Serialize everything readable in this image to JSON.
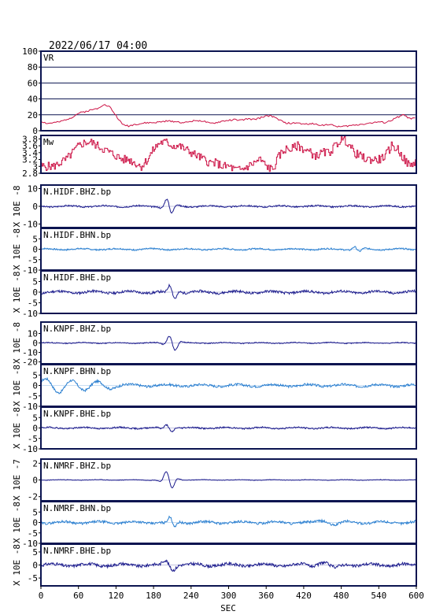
{
  "header": {
    "datetime": "2022/06/17 04:00"
  },
  "xaxis": {
    "label": "SEC",
    "range": [
      0,
      600
    ],
    "ticks": [
      0,
      60,
      120,
      180,
      240,
      300,
      360,
      420,
      480,
      540,
      600
    ]
  },
  "colors": {
    "frame": "#0b1450",
    "vr": "#cc1144",
    "mw": "#cc1144",
    "dark_trace": "#1a1a8c",
    "light_trace": "#2a7fd0"
  },
  "chart_data": [
    {
      "type": "line",
      "title": "VR",
      "ylim": [
        0,
        100
      ],
      "yticks": [
        0,
        20,
        40,
        60,
        80,
        100
      ],
      "grid": true,
      "series": [
        {
          "x": [
            0,
            10,
            20,
            30,
            40,
            50,
            60,
            70,
            80,
            90,
            100,
            110,
            120,
            130,
            140,
            150,
            160,
            170,
            180,
            190,
            200,
            210,
            220,
            230,
            240,
            250,
            260,
            270,
            280,
            290,
            300,
            310,
            320,
            330,
            340,
            350,
            360,
            370,
            380,
            390,
            400,
            410,
            420,
            430,
            440,
            450,
            460,
            470,
            480,
            490,
            500,
            510,
            520,
            530,
            540,
            550,
            560,
            570,
            580,
            590,
            600
          ],
          "values": [
            12,
            9,
            10,
            11,
            14,
            17,
            22,
            24,
            26,
            28,
            33,
            30,
            19,
            8,
            6,
            8,
            9,
            10,
            10,
            11,
            12,
            12,
            11,
            10,
            12,
            13,
            12,
            9,
            10,
            12,
            13,
            14,
            13,
            15,
            14,
            16,
            19,
            18,
            14,
            10,
            9,
            10,
            8,
            9,
            8,
            7,
            8,
            6,
            5,
            6,
            7,
            8,
            9,
            10,
            11,
            10,
            13,
            17,
            20,
            15,
            16
          ]
        }
      ]
    },
    {
      "type": "line",
      "title": "Mw",
      "ylim": [
        2.8,
        3.9
      ],
      "yticks": [
        2.8,
        3.0,
        3.2,
        3.4,
        3.6,
        3.8
      ],
      "grid": false,
      "series": [
        {
          "x": [
            0,
            10,
            20,
            30,
            40,
            50,
            60,
            70,
            80,
            90,
            100,
            110,
            120,
            130,
            140,
            150,
            160,
            170,
            180,
            190,
            200,
            210,
            220,
            230,
            240,
            250,
            260,
            270,
            280,
            290,
            300,
            310,
            320,
            330,
            340,
            350,
            360,
            370,
            380,
            390,
            400,
            410,
            420,
            430,
            440,
            450,
            460,
            470,
            480,
            490,
            500,
            510,
            520,
            530,
            540,
            550,
            560,
            570,
            580,
            590,
            600
          ],
          "values": [
            3.0,
            3.0,
            3.0,
            3.1,
            3.2,
            3.4,
            3.6,
            3.7,
            3.7,
            3.6,
            3.5,
            3.4,
            3.3,
            3.2,
            3.2,
            3.1,
            3.0,
            3.2,
            3.5,
            3.7,
            3.7,
            3.6,
            3.6,
            3.5,
            3.4,
            3.3,
            3.2,
            3.1,
            3.1,
            3.0,
            3.0,
            2.9,
            2.9,
            3.0,
            3.1,
            3.2,
            3.0,
            2.9,
            3.3,
            3.5,
            3.5,
            3.6,
            3.5,
            3.4,
            3.3,
            3.4,
            3.4,
            3.6,
            3.8,
            3.7,
            3.4,
            3.3,
            3.2,
            3.2,
            3.2,
            3.3,
            3.6,
            3.5,
            3.2,
            3.0,
            3.2
          ]
        }
      ]
    },
    {
      "type": "line",
      "title": "N.HIDF.BHZ.bp",
      "ylabel": "X 10E -8",
      "ylim": [
        -12,
        12
      ],
      "yticks": [
        10,
        0,
        -10
      ],
      "color_key": "dark_trace",
      "events": [
        {
          "t": 205,
          "amp": 5,
          "w": 7
        }
      ],
      "noise": 0.6,
      "seed": 3
    },
    {
      "type": "line",
      "title": "N.HIDF.BHN.bp",
      "ylabel": "X 10E -8",
      "ylim": [
        -10,
        10
      ],
      "yticks": [
        5,
        0,
        -5,
        -10
      ],
      "color_key": "light_trace",
      "events": [
        {
          "t": 505,
          "amp": 1.5,
          "w": 7
        }
      ],
      "noise": 0.5,
      "seed": 7
    },
    {
      "type": "line",
      "title": "N.HIDF.BHE.bp",
      "ylabel": "X 10E -8",
      "ylim": [
        -10,
        10
      ],
      "yticks": [
        5,
        0,
        -5,
        -10
      ],
      "color_key": "dark_trace",
      "events": [
        {
          "t": 210,
          "amp": 3.5,
          "w": 7
        }
      ],
      "noise": 0.8,
      "seed": 11
    },
    {
      "type": "line",
      "title": "N.KNPF.BHZ.bp",
      "ylabel": "X 10E -8",
      "ylim": [
        -22,
        22
      ],
      "yticks": [
        10,
        0,
        -10,
        -20
      ],
      "color_key": "dark_trace",
      "events": [
        {
          "t": 210,
          "amp": 9,
          "w": 8
        }
      ],
      "noise": 0.7,
      "seed": 13
    },
    {
      "type": "line",
      "title": "N.KNPF.BHN.bp",
      "ylabel": "X 10E -8",
      "ylim": [
        -10,
        10
      ],
      "yticks": [
        5,
        0,
        -5,
        -10
      ],
      "color_key": "light_trace",
      "events": [
        {
          "t": 18,
          "amp": 4.5,
          "w": 18
        },
        {
          "t": 60,
          "amp": 2.5,
          "w": 18
        },
        {
          "t": 100,
          "amp": 1.5,
          "w": 18
        }
      ],
      "noise": 0.8,
      "seed": 17
    },
    {
      "type": "line",
      "title": "N.KNPF.BHE.bp",
      "ylabel": "X 10E -8",
      "ylim": [
        -10,
        10
      ],
      "yticks": [
        5,
        0,
        -5,
        -10
      ],
      "color_key": "dark_trace",
      "events": [
        {
          "t": 205,
          "amp": 2,
          "w": 7
        }
      ],
      "noise": 0.5,
      "seed": 19
    },
    {
      "type": "line",
      "title": "N.NMRF.BHZ.bp",
      "ylabel": "X 10E -7",
      "ylim": [
        -2.5,
        2.5
      ],
      "yticks": [
        2,
        0,
        -2
      ],
      "color_key": "dark_trace",
      "events": [
        {
          "t": 205,
          "amp": 1.2,
          "w": 8
        }
      ],
      "noise": 0.05,
      "seed": 23
    },
    {
      "type": "line",
      "title": "N.NMRF.BHN.bp",
      "ylabel": "X 10E -8",
      "ylim": [
        -10,
        10
      ],
      "yticks": [
        5,
        0,
        -5,
        -10
      ],
      "color_key": "light_trace",
      "events": [
        {
          "t": 210,
          "amp": 2.5,
          "w": 7
        },
        {
          "t": 460,
          "amp": 1.2,
          "w": 16
        }
      ],
      "noise": 0.8,
      "seed": 29
    },
    {
      "type": "line",
      "title": "N.NMRF.BHE.bp",
      "ylabel": "X 10E -8",
      "ylim": [
        -8,
        8
      ],
      "yticks": [
        5,
        0,
        -5
      ],
      "color_key": "dark_trace",
      "events": [
        {
          "t": 205,
          "amp": 2,
          "w": 10
        },
        {
          "t": 460,
          "amp": 1.5,
          "w": 16
        }
      ],
      "noise": 0.8,
      "seed": 31
    }
  ]
}
